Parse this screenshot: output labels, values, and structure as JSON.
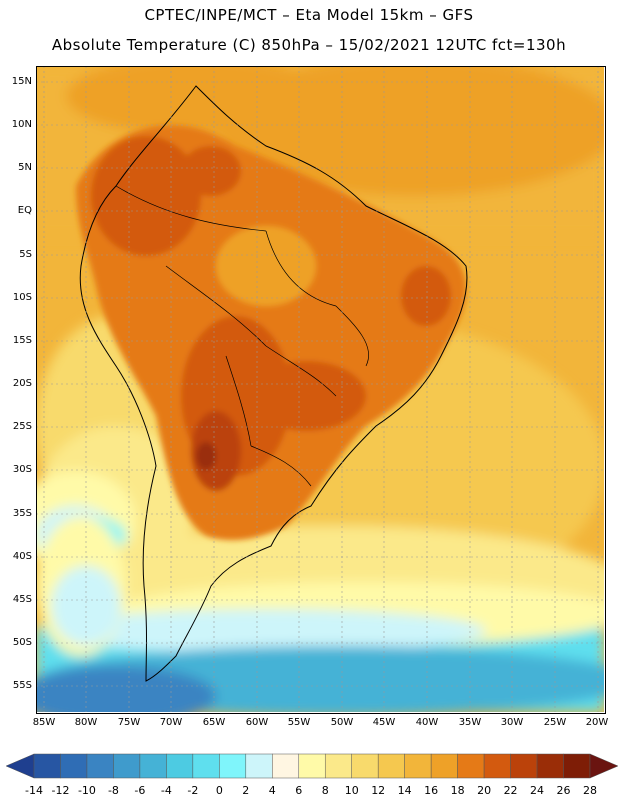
{
  "title_line1": "CPTEC/INPE/MCT  –   Eta Model 15km  –  GFS",
  "title_line2": "Absolute Temperature (C) 850hPa – 15/02/2021 12UTC fct=130h",
  "lat_labels": [
    "15N",
    "10N",
    "5N",
    "EQ",
    "5S",
    "10S",
    "15S",
    "20S",
    "25S",
    "30S",
    "35S",
    "40S",
    "45S",
    "50S",
    "55S"
  ],
  "lon_labels": [
    "85W",
    "80W",
    "75W",
    "70W",
    "65W",
    "60W",
    "55W",
    "50W",
    "45W",
    "40W",
    "35W",
    "30W",
    "25W",
    "20W"
  ],
  "legend": {
    "labels": [
      "-14",
      "-12",
      "-10",
      "-8",
      "-6",
      "-4",
      "-2",
      "0",
      "2",
      "4",
      "6",
      "8",
      "10",
      "12",
      "14",
      "16",
      "18",
      "20",
      "22",
      "24",
      "26",
      "28"
    ],
    "colors": [
      "#1f3f8f",
      "#2756a3",
      "#2f6db5",
      "#3a84c2",
      "#3f9bcc",
      "#45b2d6",
      "#4dcbe2",
      "#5fdfee",
      "#7ff5fb",
      "#cdf5fa",
      "#fff6e2",
      "#fffaa8",
      "#fbe98a",
      "#f8da6c",
      "#f5c84f",
      "#f2b53a",
      "#eea128",
      "#e57a17",
      "#d35a0f",
      "#bb420a",
      "#9a2d07",
      "#7e1d06",
      "#6a1410"
    ]
  },
  "map": {
    "type": "temperature-field",
    "region": "South America",
    "level": "850hPa"
  }
}
